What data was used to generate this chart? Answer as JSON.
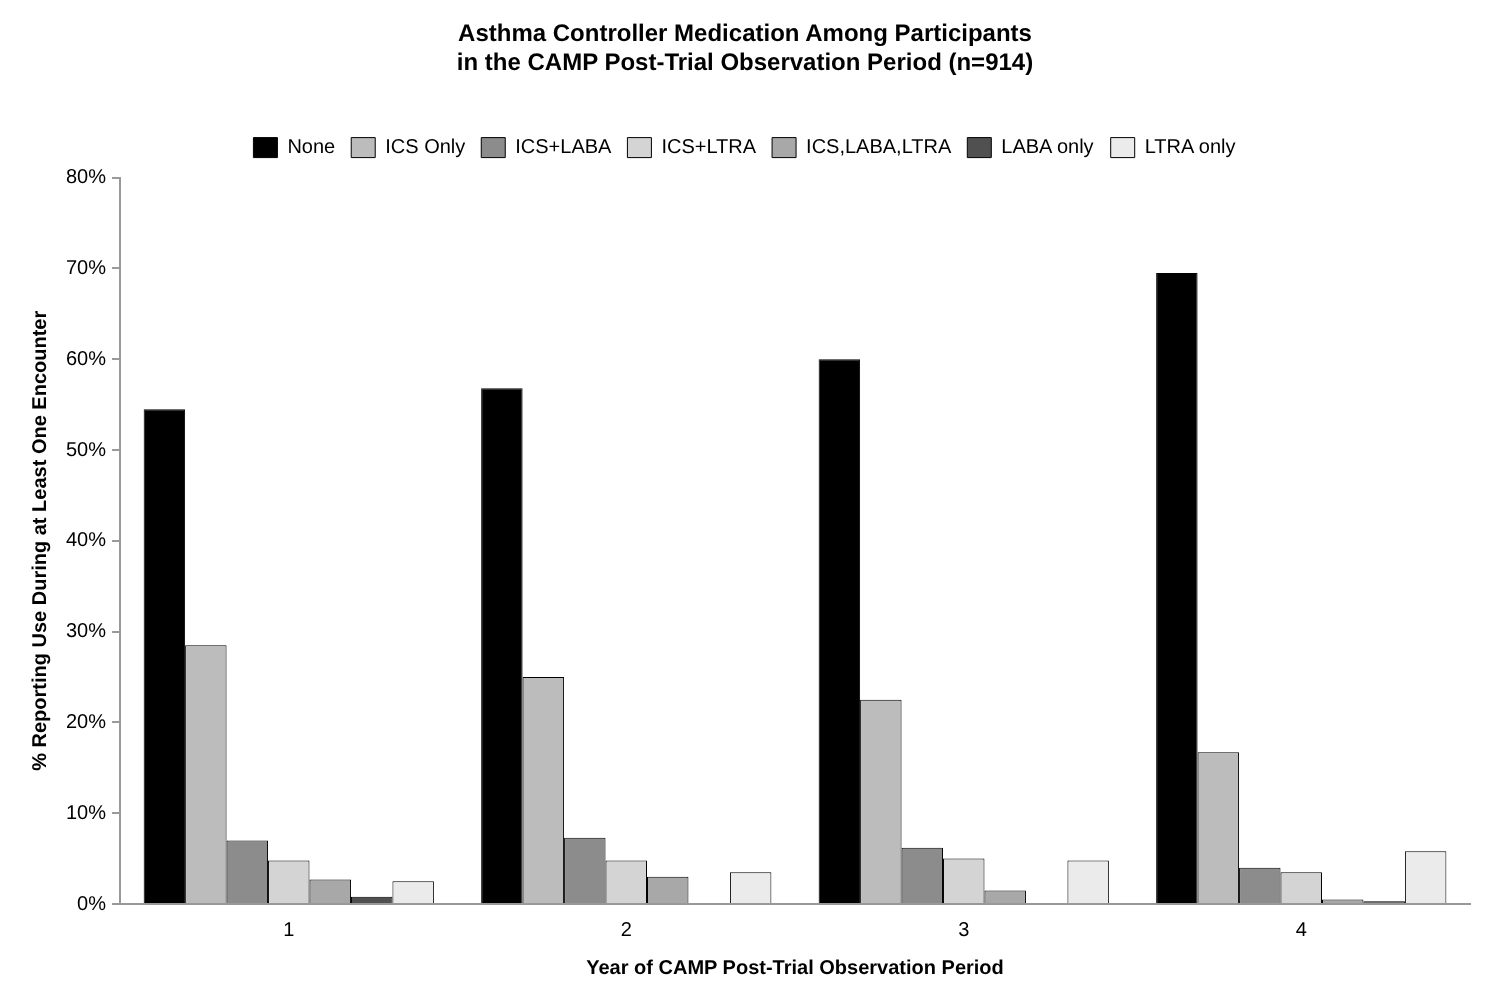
{
  "chart_data": {
    "type": "bar",
    "title": "Asthma Controller Medication Among Participants\nin the CAMP Post-Trial Observation Period (n=914)",
    "xlabel": "Year of CAMP Post-Trial Observation Period",
    "ylabel": "% Reporting Use During at Least One Encounter",
    "categories": [
      "1",
      "2",
      "3",
      "4"
    ],
    "series": [
      {
        "name": "None",
        "color": "#000000",
        "values": [
          54.5,
          56.8,
          60,
          69.5
        ]
      },
      {
        "name": "ICS Only",
        "color": "#bcbcbc",
        "values": [
          28.5,
          25,
          22.5,
          16.7
        ]
      },
      {
        "name": "ICS+LABA",
        "color": "#8c8c8c",
        "values": [
          7,
          7.3,
          6.2,
          4
        ]
      },
      {
        "name": "ICS+LTRA",
        "color": "#d4d4d4",
        "values": [
          4.8,
          4.8,
          5,
          3.5
        ]
      },
      {
        "name": "ICS,LABA,LTRA",
        "color": "#a8a8a8",
        "values": [
          2.7,
          3,
          1.5,
          0.5
        ]
      },
      {
        "name": "LABA only",
        "color": "#505050",
        "values": [
          0.8,
          0,
          0,
          0.3
        ]
      },
      {
        "name": "LTRA only",
        "color": "#ebebeb",
        "values": [
          2.5,
          3.5,
          4.8,
          5.8
        ]
      }
    ],
    "ylim": [
      0,
      80
    ],
    "yticks": [
      {
        "value": 0,
        "label": "0%"
      },
      {
        "value": 10,
        "label": "10%"
      },
      {
        "value": 20,
        "label": "20%"
      },
      {
        "value": 30,
        "label": "30%"
      },
      {
        "value": 40,
        "label": "40%"
      },
      {
        "value": 50,
        "label": "50%"
      },
      {
        "value": 60,
        "label": "60%"
      },
      {
        "value": 70,
        "label": "70%"
      },
      {
        "value": 80,
        "label": "80%"
      }
    ],
    "grid": false,
    "legend": "top"
  }
}
